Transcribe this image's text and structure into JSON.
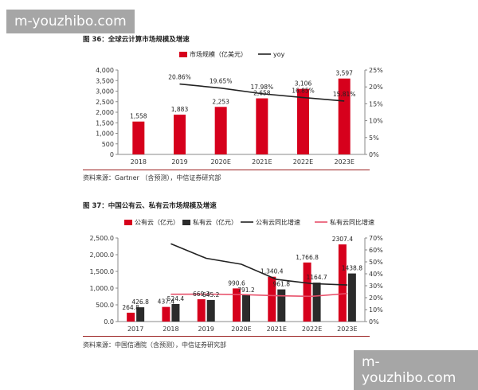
{
  "watermarks": {
    "top": "m-youzhibo.com",
    "bottom": "m-youzhibo.com"
  },
  "figure1": {
    "title": "图 36：全球云计算市场规模及增速",
    "source": "资料来源：Gartner （含预测），中信证券研究部"
  },
  "figure2": {
    "title": "图 37：中国公有云、私有云市场规模及增速",
    "source": "资料来源：中国信通院（含预测），中信证券研究部"
  },
  "colors": {
    "red": "#d6001c",
    "dark": "#2b2b2b",
    "line": "#222222",
    "pink": "#e8506a",
    "axis": "#888888"
  },
  "chart_data": [
    {
      "type": "bar",
      "categories": [
        "2018",
        "2019",
        "2020E",
        "2021E",
        "2022E",
        "2023E"
      ],
      "series": [
        {
          "name": "市场规模（亿美元）",
          "type": "bar",
          "axis": "left",
          "values": [
            1558,
            1883,
            2253,
            2658,
            3106,
            3597
          ],
          "labels": [
            "1,558",
            "1,883",
            "2,253",
            "2,658",
            "3,106",
            "3,597"
          ]
        },
        {
          "name": "yoy",
          "type": "line",
          "axis": "right",
          "values": [
            null,
            20.86,
            19.65,
            17.98,
            16.85,
            15.81
          ],
          "labels": [
            "",
            "20.86%",
            "19.65%",
            "17.98%",
            "16.85%",
            "15.81%"
          ]
        }
      ],
      "ylim": [
        0,
        4000
      ],
      "yticks": [
        "0",
        "500",
        "1,000",
        "1,500",
        "2,000",
        "2,500",
        "3,000",
        "3,500",
        "4,000"
      ],
      "y2lim": [
        0,
        25
      ],
      "y2ticks": [
        "0%",
        "5%",
        "10%",
        "15%",
        "20%",
        "25%"
      ],
      "legend": "top"
    },
    {
      "type": "bar",
      "categories": [
        "2017",
        "2018",
        "2019",
        "2020E",
        "2021E",
        "2022E",
        "2023E"
      ],
      "series": [
        {
          "name": "公有云（亿元）",
          "type": "bar",
          "axis": "left",
          "values": [
            264.8,
            437.4,
            669.3,
            990.6,
            1340.4,
            1766.8,
            2307.4
          ],
          "labels": [
            "264.8",
            "437.4",
            "669.3",
            "990.6",
            "1,340.4",
            "1,766.8",
            "2307.4"
          ]
        },
        {
          "name": "私有云（亿元）",
          "type": "bar",
          "axis": "left",
          "values": [
            426.8,
            524.4,
            645.2,
            791.2,
            961.8,
            1164.7,
            1438.8
          ],
          "labels": [
            "426.8",
            "524.4",
            "645.2",
            "791.2",
            "961.8",
            "1164.7",
            "1438.8"
          ]
        },
        {
          "name": "公有云同比增速",
          "type": "line",
          "axis": "right",
          "values": [
            null,
            65.2,
            53.0,
            48.0,
            35.3,
            31.8,
            30.6
          ]
        },
        {
          "name": "私有云同比增速",
          "type": "line",
          "axis": "right",
          "values": [
            null,
            22.9,
            23.0,
            22.6,
            21.6,
            21.1,
            23.5
          ]
        }
      ],
      "ylim": [
        0,
        2500
      ],
      "yticks": [
        "0.0",
        "500.0",
        "1,000.0",
        "1,500.0",
        "2,000.0",
        "2,500.0"
      ],
      "y2lim": [
        0,
        70
      ],
      "y2ticks": [
        "0%",
        "10%",
        "20%",
        "30%",
        "40%",
        "50%",
        "60%",
        "70%"
      ],
      "legend": "top"
    }
  ]
}
